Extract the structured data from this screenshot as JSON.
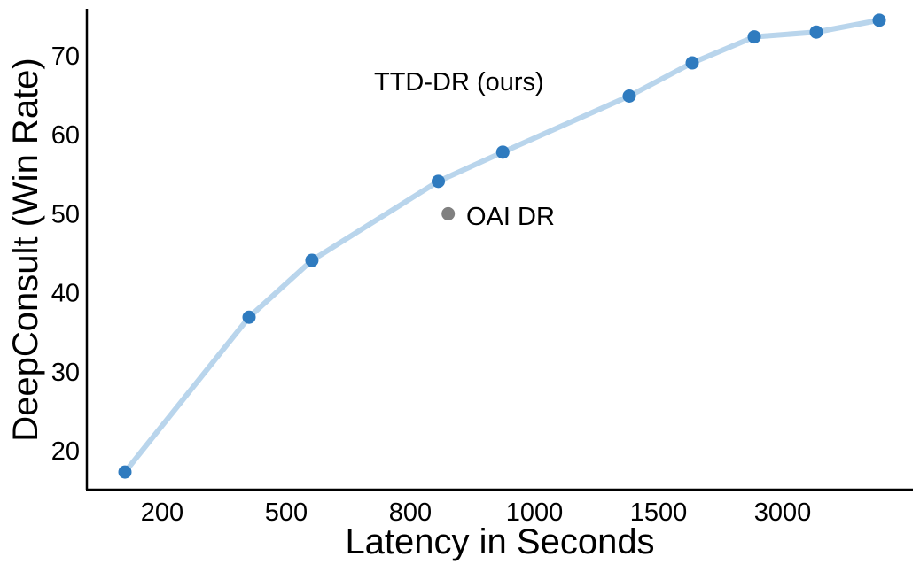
{
  "chart_data": {
    "type": "line",
    "title": "",
    "xlabel": "Latency in Seconds",
    "ylabel": "DeepConsult (Win Rate)",
    "x_scale": "non-uniform (tick labels evenly spaced)",
    "x_ticks": [
      200,
      500,
      800,
      1000,
      1500,
      3000
    ],
    "y_ticks": [
      20,
      30,
      40,
      50,
      60,
      70
    ],
    "ylim": [
      15,
      76
    ],
    "grid": false,
    "series": [
      {
        "name": "TTD-DR (ours)",
        "line_color": "#b9d5ec",
        "marker_color": "#2f7bbf",
        "x": [
          110,
          410,
          562,
          845,
          949,
          1382,
          1907,
          2657,
          3407,
          4168
        ],
        "y": [
          17.3,
          36.9,
          44.1,
          54.1,
          57.8,
          64.9,
          69.1,
          72.4,
          73.0,
          74.5
        ]
      },
      {
        "name": "OAI DR",
        "marker_color": "#808080",
        "x": [
          861
        ],
        "y": [
          50.0
        ]
      }
    ]
  }
}
